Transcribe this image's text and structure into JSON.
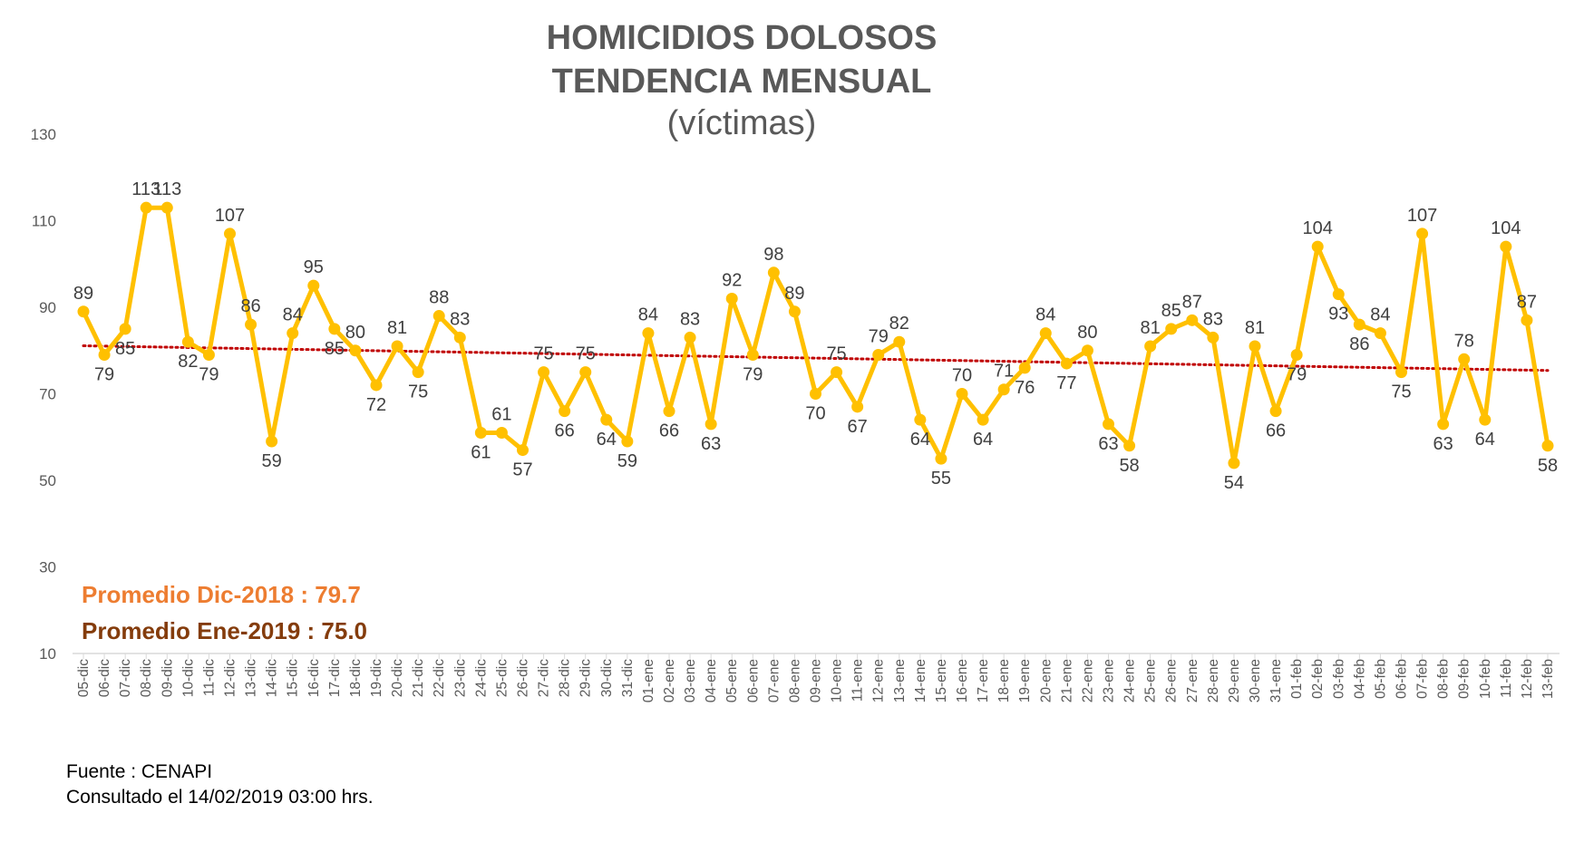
{
  "chart_data": {
    "type": "line",
    "title_line1": "HOMICIDIOS DOLOSOS",
    "title_line2": "TENDENCIA MENSUAL",
    "subtitle": "(víctimas)",
    "ylim": [
      10,
      130
    ],
    "yticks": [
      10,
      30,
      50,
      70,
      90,
      110,
      130
    ],
    "categories": [
      "05-dic",
      "06-dic",
      "07-dic",
      "08-dic",
      "09-dic",
      "10-dic",
      "11-dic",
      "12-dic",
      "13-dic",
      "14-dic",
      "15-dic",
      "16-dic",
      "17-dic",
      "18-dic",
      "19-dic",
      "20-dic",
      "21-dic",
      "22-dic",
      "23-dic",
      "24-dic",
      "25-dic",
      "26-dic",
      "27-dic",
      "28-dic",
      "29-dic",
      "30-dic",
      "31-dic",
      "01-ene",
      "02-ene",
      "03-ene",
      "04-ene",
      "05-ene",
      "06-ene",
      "07-ene",
      "08-ene",
      "09-ene",
      "10-ene",
      "11-ene",
      "12-ene",
      "13-ene",
      "14-ene",
      "15-ene",
      "16-ene",
      "17-ene",
      "18-ene",
      "19-ene",
      "20-ene",
      "21-ene",
      "22-ene",
      "23-ene",
      "24-ene",
      "25-ene",
      "26-ene",
      "27-ene",
      "28-ene",
      "29-ene",
      "30-ene",
      "31-ene",
      "01-feb",
      "02-feb",
      "03-feb",
      "04-feb",
      "05-feb",
      "06-feb",
      "07-feb",
      "08-feb",
      "09-feb",
      "10-feb",
      "11-feb",
      "12-feb",
      "13-feb"
    ],
    "series": [
      {
        "values": [
          89,
          79,
          85,
          113,
          113,
          82,
          79,
          107,
          86,
          59,
          84,
          95,
          85,
          80,
          72,
          81,
          75,
          88,
          83,
          61,
          61,
          57,
          75,
          66,
          75,
          64,
          59,
          84,
          66,
          83,
          63,
          92,
          79,
          98,
          89,
          70,
          75,
          67,
          79,
          82,
          64,
          55,
          70,
          64,
          71,
          76,
          84,
          77,
          80,
          63,
          58,
          81,
          85,
          87,
          83,
          54,
          81,
          66,
          79,
          104,
          93,
          86,
          84,
          75,
          107,
          63,
          78,
          64,
          104,
          87,
          58
        ],
        "color": "#FFC000"
      }
    ],
    "trendline": {
      "start": 81.1,
      "end": 75.4,
      "color": "#C00000",
      "style": "dotted"
    },
    "grid": false,
    "legend": "none"
  },
  "averages": {
    "dic": "Promedio  Dic-2018   : 79.7",
    "ene": "Promedio  Ene-2019  : 75.0"
  },
  "source": {
    "line1": "Fuente : CENAPI",
    "line2": "Consultado el 14/02/2019  03:00 hrs."
  },
  "colors": {
    "series": "#FFC000",
    "trend": "#C00000",
    "avg_dic": "#ED7D31",
    "avg_ene": "#843C0C",
    "text": "#595959"
  }
}
